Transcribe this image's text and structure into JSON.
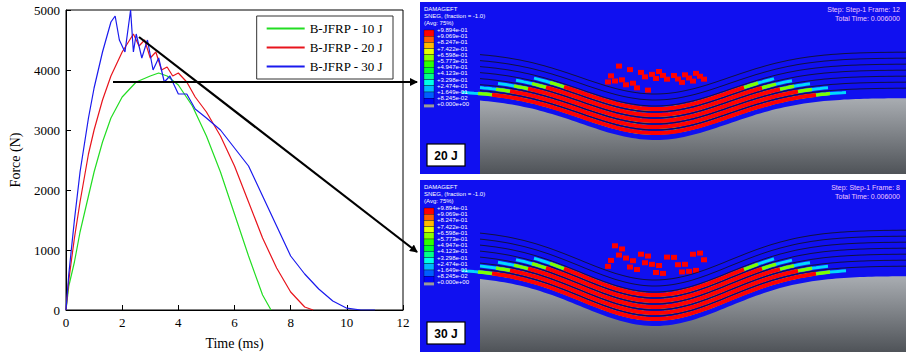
{
  "chart_data": {
    "type": "line",
    "x_label": "Time (ms)",
    "y_label": "Force (N)",
    "xlim": [
      0,
      12
    ],
    "xticks": [
      0,
      2,
      4,
      6,
      8,
      10,
      12
    ],
    "ylim": [
      0,
      5000
    ],
    "yticks": [
      0,
      1000,
      2000,
      3000,
      4000,
      5000
    ],
    "grid": false,
    "legend": "upper right",
    "series": [
      {
        "name": "B-JFRP - 10 J",
        "color": "#22dd22",
        "x": [
          0,
          0.1,
          0.3,
          0.5,
          0.8,
          1.0,
          1.3,
          1.6,
          2.0,
          2.5,
          3.0,
          3.3,
          3.6,
          4.0,
          4.5,
          5.0,
          5.5,
          6.0,
          6.5,
          7.0,
          7.3
        ],
        "values": [
          0,
          400,
          800,
          1300,
          1900,
          2300,
          2800,
          3200,
          3550,
          3800,
          3900,
          3950,
          3900,
          3750,
          3400,
          2900,
          2300,
          1600,
          900,
          250,
          0
        ]
      },
      {
        "name": "B-JFRP - 20 J",
        "color": "#e8141c",
        "x": [
          0,
          0.1,
          0.3,
          0.5,
          0.8,
          1.0,
          1.3,
          1.6,
          1.8,
          2.0,
          2.2,
          2.4,
          2.6,
          2.8,
          3.0,
          3.2,
          3.4,
          3.6,
          3.8,
          4.0,
          4.3,
          4.6,
          5.0,
          5.5,
          6.0,
          6.5,
          7.0,
          7.5,
          8.0,
          8.5,
          8.8
        ],
        "values": [
          0,
          500,
          1200,
          1800,
          2600,
          3000,
          3500,
          3900,
          4100,
          4300,
          4450,
          4600,
          4400,
          4500,
          4200,
          4300,
          4000,
          4050,
          3900,
          3950,
          3800,
          3550,
          3300,
          2900,
          2400,
          1800,
          1200,
          700,
          300,
          50,
          0
        ]
      },
      {
        "name": "B-JFRP - 30 J",
        "color": "#1a1aee",
        "x": [
          0,
          0.1,
          0.3,
          0.5,
          0.8,
          1.0,
          1.3,
          1.6,
          1.75,
          1.9,
          2.1,
          2.3,
          2.4,
          2.5,
          2.7,
          2.9,
          3.1,
          3.3,
          3.5,
          3.7,
          4.0,
          4.3,
          4.6,
          5.0,
          5.5,
          6.0,
          6.5,
          7.0,
          7.5,
          8.0,
          8.5,
          9.0,
          9.5,
          10.0,
          10.5,
          11.0
        ],
        "values": [
          0,
          600,
          1500,
          2300,
          3200,
          3700,
          4300,
          4800,
          4900,
          4500,
          4300,
          5000,
          4300,
          4600,
          4200,
          4500,
          4000,
          4200,
          3800,
          3900,
          3600,
          3600,
          3350,
          3200,
          3000,
          2700,
          2400,
          1900,
          1400,
          900,
          600,
          350,
          150,
          30,
          0,
          0
        ]
      }
    ]
  },
  "contour_panels": {
    "legend_title": [
      "DAMAGEFT",
      "SNEG, (fraction = -1.0)",
      "(Avg: 75%)"
    ],
    "legend_values": [
      "+9.894e-01",
      "+9.069e-01",
      "+8.247e-01",
      "+7.422e-01",
      "+6.598e-01",
      "+5.773e-01",
      "+4.947e-01",
      "+4.123e-01",
      "+3.298e-01",
      "+2.474e-01",
      "+1.649e-01",
      "+8.245e-02",
      "+0.000e+00"
    ],
    "panels": [
      {
        "label": "20 J",
        "step": "Step: Step-1",
        "frame": "Frame: 12",
        "time": "Total Time: 0.006000"
      },
      {
        "label": "30 J",
        "step": "Step: Step-1",
        "frame": "Frame: 8",
        "time": "Total Time: 0.006000"
      }
    ]
  }
}
